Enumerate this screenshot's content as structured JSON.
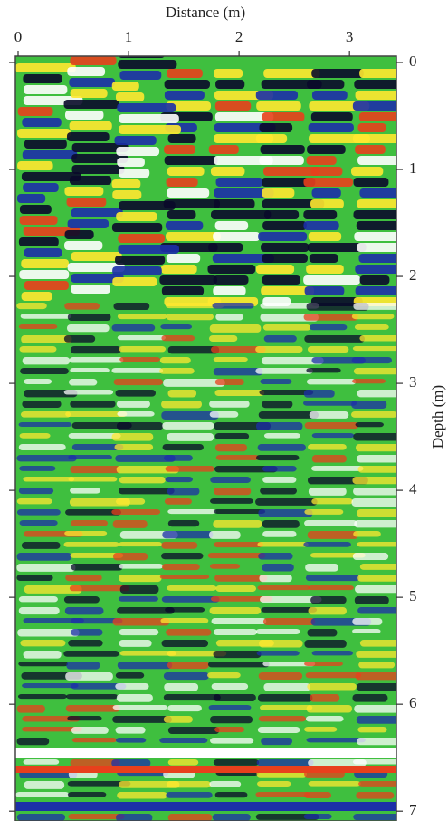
{
  "chart_data": {
    "type": "radargram",
    "x_label": "Distance (m)",
    "y_label": "Depth (m)",
    "xlim": [
      0,
      3.4
    ],
    "xticks": [
      0,
      1,
      2,
      3
    ],
    "ylim": [
      0,
      7.1
    ],
    "yticks": [
      0,
      1,
      2,
      3,
      4,
      5,
      6,
      7
    ],
    "y_inverted": true
  }
}
